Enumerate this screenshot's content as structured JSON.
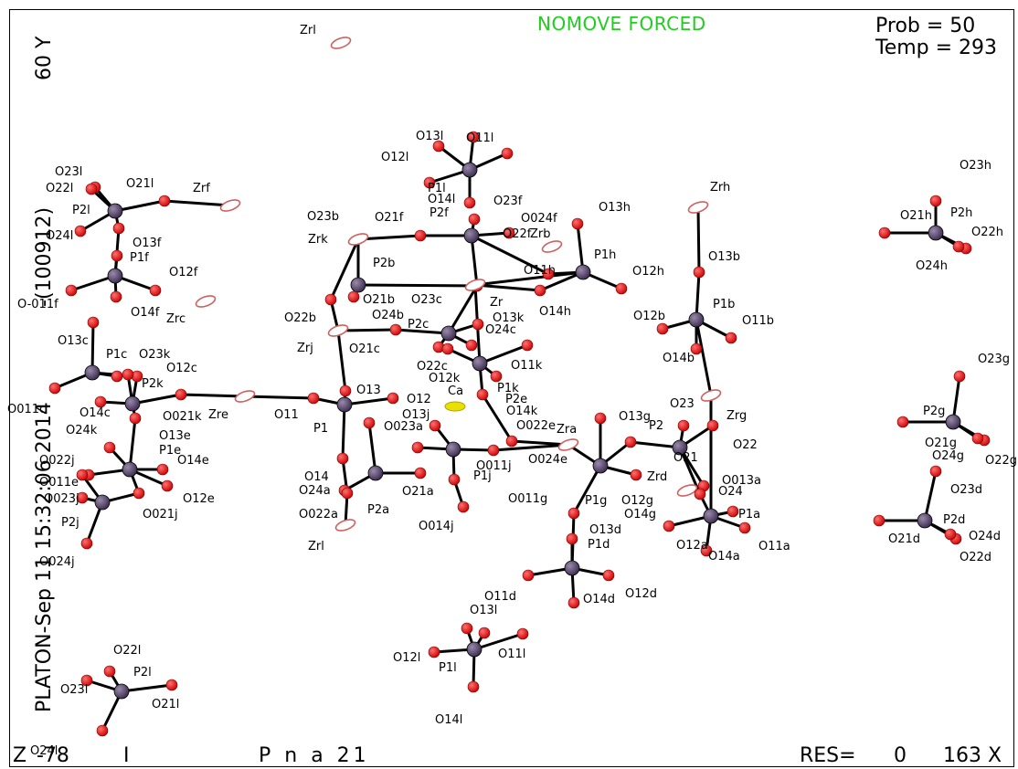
{
  "header": {
    "status": "NOMOVE FORCED",
    "prob_label": "Prob =  50",
    "temp_label": "Temp = 293"
  },
  "side_text": {
    "title": "PLATON-Sep 11 15:32:06 2014",
    "identifier": "-(100912)",
    "view_angle": "60 Y"
  },
  "footer": {
    "z_axis": "Z",
    "z_value": "-78",
    "flag": "I",
    "space_group": "P n a 21",
    "res_label": "RES=",
    "res_value": "0",
    "magnification": "163 X"
  },
  "colors": {
    "oxygen": "#e00000",
    "phosphorus": "#5a4a6e",
    "zirconium": "#d06060",
    "calcium": "#e8e000",
    "status": "#22cc22"
  }
}
